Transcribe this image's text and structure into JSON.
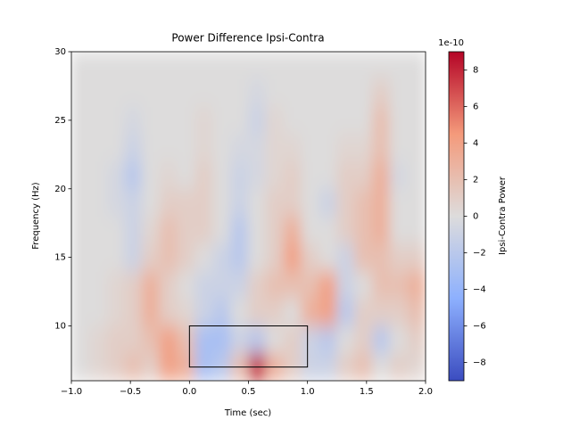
{
  "chart_data": {
    "type": "heatmap",
    "title": "Power Difference Ipsi-Contra",
    "xlabel": "Time (sec)",
    "ylabel": "Frequency (Hz)",
    "cmap": "coolwarm",
    "x": [
      -0.925,
      -0.775,
      -0.625,
      -0.475,
      -0.325,
      -0.175,
      -0.025,
      0.125,
      0.275,
      0.425,
      0.575,
      0.725,
      0.875,
      1.025,
      1.175,
      1.325,
      1.475,
      1.625,
      1.775,
      1.925
    ],
    "y": [
      7,
      9,
      11,
      13,
      15,
      17,
      19,
      21,
      23,
      25,
      27,
      29
    ],
    "z": [
      [
        0,
        0.5,
        1,
        2,
        1,
        4,
        3,
        -3,
        -2,
        2,
        8,
        3,
        1,
        -1,
        -1,
        1,
        2,
        0,
        1,
        0.5
      ],
      [
        0,
        0.5,
        1,
        1,
        2,
        4,
        2,
        -3,
        -3,
        -1,
        -2,
        0,
        1,
        -1,
        -2,
        0,
        1,
        -2,
        0,
        1
      ],
      [
        0,
        0,
        0.5,
        1,
        3,
        1,
        0.5,
        -1,
        -2,
        0,
        1,
        1,
        0,
        3,
        4,
        -2,
        1,
        1,
        1,
        2
      ],
      [
        0,
        0,
        0.5,
        1,
        3,
        1,
        0,
        -1,
        -1,
        -1,
        1,
        2,
        2,
        2,
        4,
        -1,
        0,
        2,
        2,
        3
      ],
      [
        0,
        0,
        0,
        -1,
        1,
        2,
        1,
        0,
        -1,
        -2,
        0,
        1,
        4,
        1,
        0,
        -1,
        2,
        2,
        1,
        1
      ],
      [
        0,
        0,
        0,
        -1,
        0.5,
        2,
        1,
        1,
        0,
        -2,
        0,
        1,
        3,
        0,
        0,
        1,
        2,
        3,
        0,
        0
      ],
      [
        0,
        0,
        -0.5,
        -1,
        0,
        1,
        1,
        1,
        0,
        -1,
        0,
        1,
        1,
        0,
        -1,
        1,
        2,
        3,
        0,
        0
      ],
      [
        0,
        0,
        -0.5,
        -2,
        0,
        0.5,
        0,
        1,
        0,
        -1,
        -0.5,
        0.5,
        1,
        0,
        0,
        1,
        1,
        3,
        -0.5,
        0
      ],
      [
        0,
        0,
        0,
        -1,
        0,
        0,
        0,
        0.5,
        0,
        -0.5,
        -0.5,
        0.5,
        0.5,
        0,
        0,
        0.5,
        0.5,
        2,
        0,
        0
      ],
      [
        0,
        0,
        0,
        -0.5,
        0,
        0,
        0,
        0.5,
        0,
        0,
        -1,
        0.5,
        0,
        0,
        0,
        0,
        0,
        2,
        0,
        0
      ],
      [
        0,
        0,
        0,
        0,
        0,
        0,
        0,
        0,
        0,
        0,
        -0.5,
        0,
        0,
        0,
        0,
        0,
        0,
        1,
        0,
        0
      ],
      [
        0,
        0,
        0,
        0,
        0,
        0,
        0,
        0,
        0,
        0,
        0,
        0,
        0,
        0,
        0,
        0,
        0,
        0,
        0,
        0
      ]
    ],
    "xlim": [
      -1,
      2
    ],
    "ylim": [
      6,
      30
    ],
    "xticks": [
      {
        "value": -1,
        "label": "−1.0"
      },
      {
        "value": -0.5,
        "label": "−0.5"
      },
      {
        "value": 0,
        "label": "0.0"
      },
      {
        "value": 0.5,
        "label": "0.5"
      },
      {
        "value": 1,
        "label": "1.0"
      },
      {
        "value": 1.5,
        "label": "1.5"
      },
      {
        "value": 2,
        "label": "2.0"
      }
    ],
    "yticks": [
      10,
      15,
      20,
      25,
      30
    ],
    "roi": {
      "x": [
        0,
        1
      ],
      "y": [
        7,
        10
      ]
    },
    "colorbar": {
      "label": "Ipsi-Contra Power",
      "offset_label": "1e-10",
      "clim": [
        -9,
        9
      ],
      "ticks": [
        {
          "value": -8,
          "label": "−8"
        },
        {
          "value": -6,
          "label": "−6"
        },
        {
          "value": -4,
          "label": "−4"
        },
        {
          "value": -2,
          "label": "−2"
        },
        0,
        2,
        4,
        6,
        8
      ]
    }
  }
}
